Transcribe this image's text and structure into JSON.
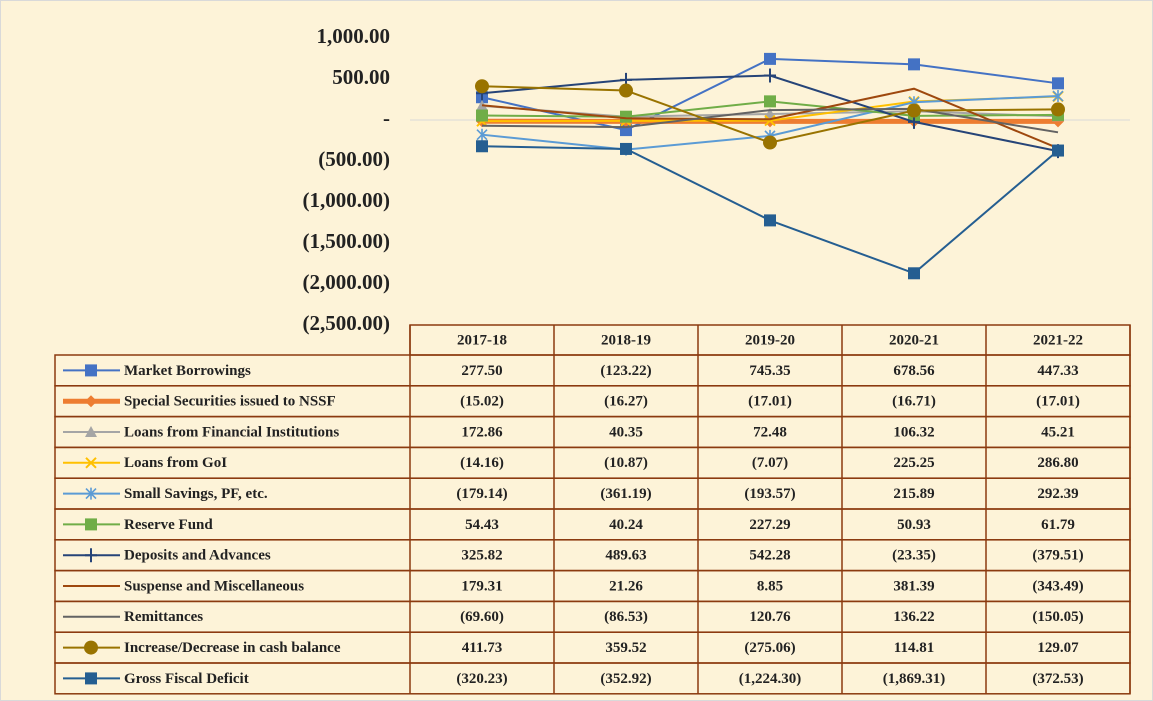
{
  "chart_data": {
    "type": "line",
    "categories": [
      "2017-18",
      "2018-19",
      "2019-20",
      "2020-21",
      "2021-22"
    ],
    "ylim": [
      -2500,
      1000
    ],
    "yticks": [
      {
        "value": 1000,
        "label": "1,000.00"
      },
      {
        "value": 500,
        "label": "500.00"
      },
      {
        "value": 0,
        "label": "-"
      },
      {
        "value": -500,
        "label": "(500.00)"
      },
      {
        "value": -1000,
        "label": "(1,000.00)"
      },
      {
        "value": -1500,
        "label": "(1,500.00)"
      },
      {
        "value": -2000,
        "label": "(2,000.00)"
      },
      {
        "value": -2500,
        "label": "(2,500.00)"
      }
    ],
    "grid": false,
    "data_table": true,
    "series": [
      {
        "name": "Market Borrowings",
        "color": "#4472c4",
        "marker": "square",
        "line_width": 2,
        "values": [
          277.5,
          -123.22,
          745.35,
          678.56,
          447.33
        ],
        "value_labels": [
          "277.50",
          "(123.22)",
          "745.35",
          "678.56",
          "447.33"
        ]
      },
      {
        "name": "Special Securities issued to NSSF",
        "color": "#ed7d31",
        "marker": "diamond",
        "line_width": 5,
        "values": [
          -15.02,
          -16.27,
          -17.01,
          -16.71,
          -17.01
        ],
        "value_labels": [
          "(15.02)",
          "(16.27)",
          "(17.01)",
          "(16.71)",
          "(17.01)"
        ]
      },
      {
        "name": "Loans from Financial Institutions",
        "color": "#a5a5a5",
        "marker": "triangle",
        "line_width": 2,
        "values": [
          172.86,
          40.35,
          72.48,
          106.32,
          45.21
        ],
        "value_labels": [
          "172.86",
          "40.35",
          "72.48",
          "106.32",
          "45.21"
        ]
      },
      {
        "name": "Loans from GoI",
        "color": "#ffc000",
        "marker": "x",
        "line_width": 2,
        "values": [
          -14.16,
          -10.87,
          -7.07,
          225.25,
          286.8
        ],
        "value_labels": [
          "(14.16)",
          "(10.87)",
          "(7.07)",
          "225.25",
          "286.80"
        ]
      },
      {
        "name": "Small Savings, PF, etc.",
        "color": "#5b9bd5",
        "marker": "star",
        "line_width": 2,
        "values": [
          -179.14,
          -361.19,
          -193.57,
          215.89,
          292.39
        ],
        "value_labels": [
          "(179.14)",
          "(361.19)",
          "(193.57)",
          "215.89",
          "292.39"
        ]
      },
      {
        "name": "Reserve Fund",
        "color": "#70ad47",
        "marker": "square",
        "line_width": 2,
        "values": [
          54.43,
          40.24,
          227.29,
          50.93,
          61.79
        ],
        "value_labels": [
          "54.43",
          "40.24",
          "227.29",
          "50.93",
          "61.79"
        ]
      },
      {
        "name": "Deposits and Advances",
        "color": "#264478",
        "marker": "plus",
        "line_width": 2,
        "values": [
          325.82,
          489.63,
          542.28,
          -23.35,
          -379.51
        ],
        "value_labels": [
          "325.82",
          "489.63",
          "542.28",
          "(23.35)",
          "(379.51)"
        ]
      },
      {
        "name": "Suspense and Miscellaneous",
        "color": "#9e480e",
        "marker": "none",
        "line_width": 2,
        "values": [
          179.31,
          21.26,
          8.85,
          381.39,
          -343.49
        ],
        "value_labels": [
          "179.31",
          "21.26",
          "8.85",
          "381.39",
          "(343.49)"
        ]
      },
      {
        "name": "Remittances",
        "color": "#636363",
        "marker": "none",
        "line_width": 2,
        "values": [
          -69.6,
          -86.53,
          120.76,
          136.22,
          -150.05
        ],
        "value_labels": [
          "(69.60)",
          "(86.53)",
          "120.76",
          "136.22",
          "(150.05)"
        ]
      },
      {
        "name": "Increase/Decrease in cash balance",
        "color": "#997300",
        "marker": "circle",
        "line_width": 2,
        "values": [
          411.73,
          359.52,
          -275.06,
          114.81,
          129.07
        ],
        "value_labels": [
          "411.73",
          "359.52",
          "(275.06)",
          "114.81",
          "129.07"
        ]
      },
      {
        "name": "Gross Fiscal Deficit",
        "color": "#255e91",
        "marker": "square",
        "line_width": 2,
        "values": [
          -320.23,
          -352.92,
          -1224.3,
          -1869.31,
          -372.53
        ],
        "value_labels": [
          "(320.23)",
          "(352.92)",
          "(1,224.30)",
          "(1,869.31)",
          "(372.53)"
        ]
      }
    ]
  }
}
